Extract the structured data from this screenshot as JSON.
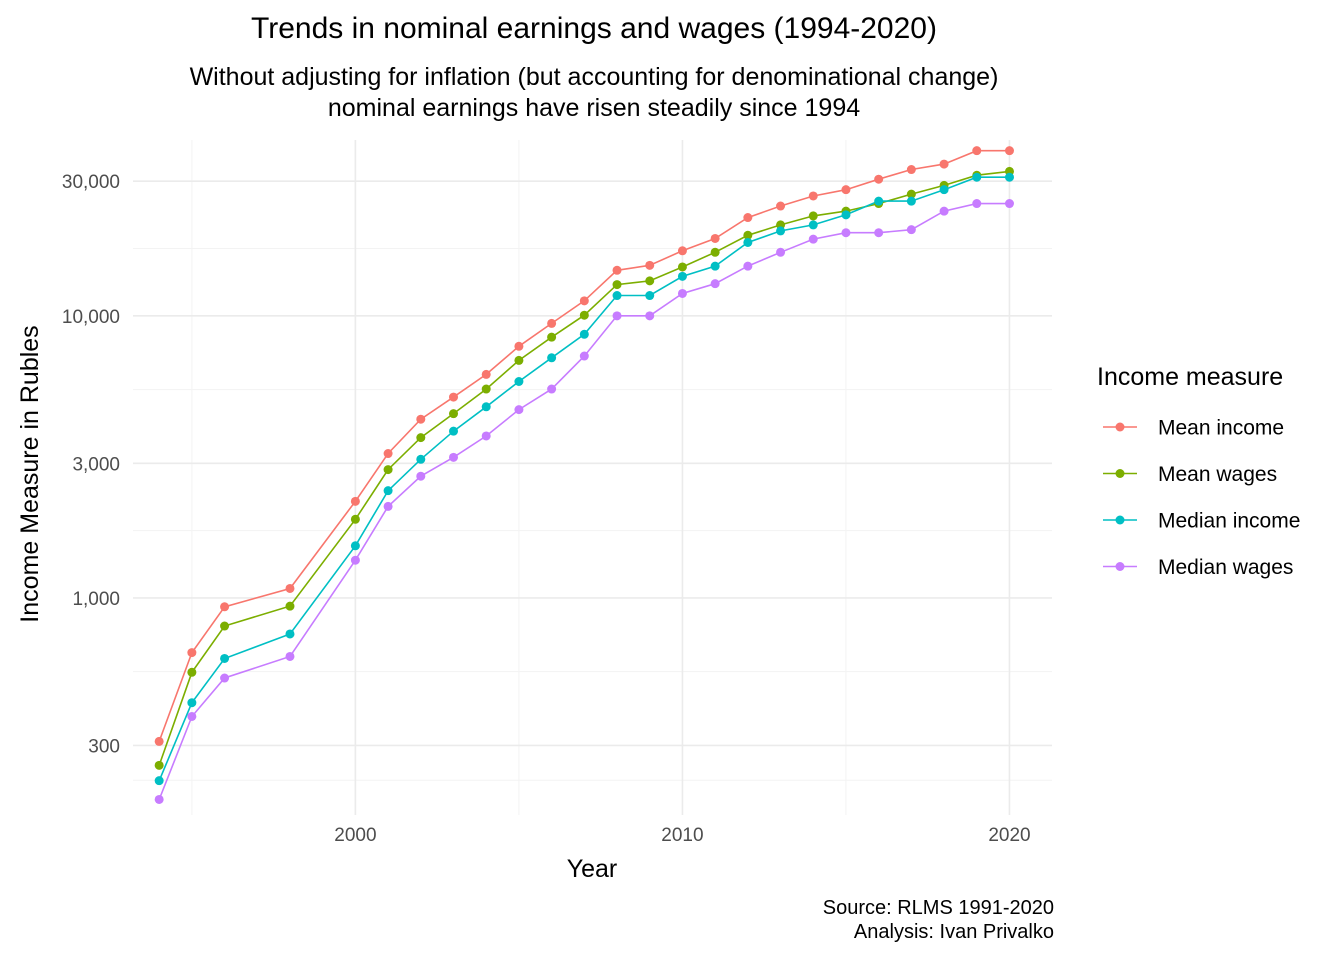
{
  "chart_data": {
    "type": "line",
    "title": "Trends in nominal earnings and wages (1994-2020)",
    "subtitle": [
      "Without adjusting for inflation (but accounting for denominational change)",
      "nominal earnings have risen steadily since 1994"
    ],
    "xlabel": "Year",
    "ylabel": "Income Measure in Rubles",
    "y_scale": "log10",
    "xlim": [
      1993.2,
      2021.3
    ],
    "ylim": [
      170,
      42000
    ],
    "x_ticks": [
      2000,
      2010,
      2020
    ],
    "x_tick_labels": [
      "2000",
      "2010",
      "2020"
    ],
    "y_ticks": [
      300,
      1000,
      3000,
      10000,
      30000
    ],
    "y_tick_labels": [
      "300",
      "1,000",
      "3,000",
      "10,000",
      "30,000"
    ],
    "grid": true,
    "legend": {
      "title": "Income measure",
      "position": "right"
    },
    "x": [
      1994,
      1995,
      1996,
      1998,
      2000,
      2001,
      2002,
      2003,
      2004,
      2005,
      2006,
      2007,
      2008,
      2009,
      2010,
      2011,
      2012,
      2013,
      2014,
      2015,
      2016,
      2017,
      2018,
      2019,
      2020
    ],
    "series": [
      {
        "name": "Mean income",
        "color": "#F8766D",
        "values": [
          310,
          640,
          930,
          1080,
          2200,
          3250,
          4300,
          5150,
          6200,
          7800,
          9400,
          11300,
          14500,
          15100,
          17000,
          18800,
          22300,
          24500,
          26600,
          28000,
          30500,
          33000,
          34500,
          38500,
          38500
        ]
      },
      {
        "name": "Mean wages",
        "color": "#7CAE00",
        "values": [
          255,
          545,
          795,
          935,
          1900,
          2850,
          3700,
          4500,
          5500,
          6950,
          8400,
          10050,
          12900,
          13300,
          14900,
          16800,
          19300,
          21000,
          22600,
          23500,
          25000,
          27000,
          29000,
          31500,
          32500
        ]
      },
      {
        "name": "Median income",
        "color": "#00BFC4",
        "values": [
          225,
          425,
          610,
          745,
          1530,
          2400,
          3100,
          3900,
          4760,
          5850,
          7100,
          8600,
          11800,
          11800,
          13800,
          15000,
          18200,
          20000,
          21000,
          22800,
          25500,
          25500,
          28000,
          31000,
          31000
        ]
      },
      {
        "name": "Median wages",
        "color": "#C77CFF",
        "values": [
          193,
          380,
          520,
          620,
          1360,
          2110,
          2700,
          3150,
          3750,
          4650,
          5500,
          7200,
          10000,
          10000,
          12000,
          13000,
          15000,
          16800,
          18700,
          19700,
          19700,
          20200,
          23500,
          25000,
          25000
        ]
      }
    ]
  },
  "caption": [
    "Source: RLMS 1991-2020",
    "Analysis: Ivan Privalko"
  ]
}
